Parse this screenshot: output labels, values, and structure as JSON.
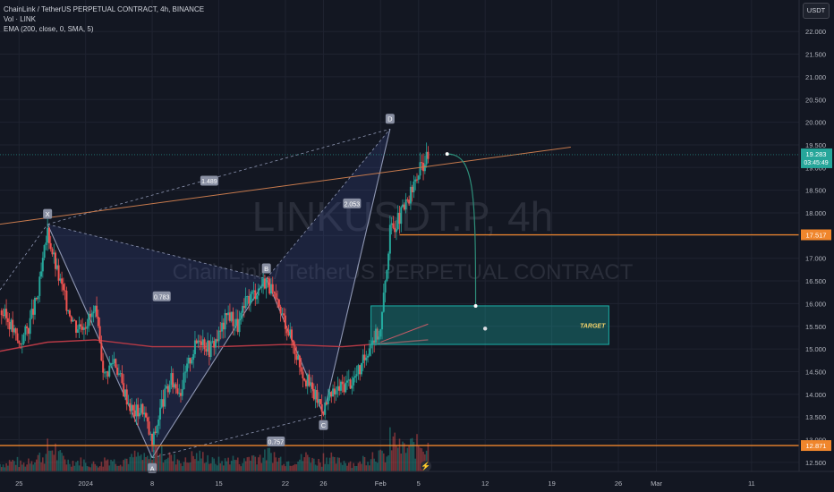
{
  "legend": {
    "symbol_line": "ChainLink / TetherUS PERPETUAL CONTRACT, 4h, BINANCE",
    "vol_line": "Vol · LINK",
    "ema_line": "EMA (200, close, 0, SMA, 5)"
  },
  "watermark": {
    "ticker": "LINKUSDT.P, 4h",
    "name": "ChainLink / TetherUS PERPETUAL CONTRACT"
  },
  "currency_badge": "USDT",
  "colors": {
    "background": "#131722",
    "up": "#26a69a",
    "down": "#ef5350",
    "ema": "#b83a46",
    "pattern": "#8f97b3",
    "trendline": "#c77a4d",
    "level": "#f0862c",
    "target": "#1ab0a7"
  },
  "chart_data": {
    "type": "candlestick",
    "title": "ChainLink / TetherUS PERPETUAL CONTRACT, 4h, BINANCE",
    "y_axis": {
      "ticks": [
        12.5,
        13.0,
        13.5,
        14.0,
        14.5,
        15.0,
        15.5,
        16.0,
        16.5,
        17.0,
        17.5,
        18.0,
        18.5,
        19.0,
        19.5,
        20.0,
        20.5,
        21.0,
        21.5,
        22.0
      ],
      "tick_labels": [
        "12.500",
        "13.000",
        "13.500",
        "14.000",
        "14.500",
        "15.000",
        "15.500",
        "16.000",
        "16.500",
        "17.000",
        "17.500",
        "18.000",
        "18.500",
        "19.000",
        "19.500",
        "20.000",
        "20.500",
        "21.000",
        "21.500",
        "22.000"
      ],
      "range": [
        12.3,
        22.3
      ]
    },
    "x_axis": {
      "range": [
        "2023-12-23",
        "2024-03-16"
      ],
      "ticks": [
        {
          "date": "2023-12-25",
          "label": "25"
        },
        {
          "date": "2024-01-01",
          "label": "2024"
        },
        {
          "date": "2024-01-08",
          "label": "8"
        },
        {
          "date": "2024-01-15",
          "label": "15"
        },
        {
          "date": "2024-01-22",
          "label": "22"
        },
        {
          "date": "2024-01-26",
          "label": "26"
        },
        {
          "date": "2024-02-01",
          "label": "Feb"
        },
        {
          "date": "2024-02-05",
          "label": "5"
        },
        {
          "date": "2024-02-12",
          "label": "12"
        },
        {
          "date": "2024-02-19",
          "label": "19"
        },
        {
          "date": "2024-02-26",
          "label": "26"
        },
        {
          "date": "2024-03-01",
          "label": "Mar"
        },
        {
          "date": "2024-03-11",
          "label": "11"
        }
      ]
    },
    "price_path": [
      {
        "date": "2023-12-23",
        "price": 15.85
      },
      {
        "date": "2023-12-24",
        "price": 15.6
      },
      {
        "date": "2023-12-25",
        "price": 15.1
      },
      {
        "date": "2023-12-26",
        "price": 15.5
      },
      {
        "date": "2023-12-27",
        "price": 16.2
      },
      {
        "date": "2023-12-28",
        "price": 17.6
      },
      {
        "date": "2023-12-29",
        "price": 16.7
      },
      {
        "date": "2023-12-30",
        "price": 16.0
      },
      {
        "date": "2023-12-31",
        "price": 15.5
      },
      {
        "date": "2024-01-01",
        "price": 15.6
      },
      {
        "date": "2024-01-02",
        "price": 15.8
      },
      {
        "date": "2024-01-03",
        "price": 14.4
      },
      {
        "date": "2024-01-04",
        "price": 14.8
      },
      {
        "date": "2024-01-05",
        "price": 14.1
      },
      {
        "date": "2024-01-06",
        "price": 13.6
      },
      {
        "date": "2024-01-07",
        "price": 13.7
      },
      {
        "date": "2024-01-08",
        "price": 12.9
      },
      {
        "date": "2024-01-09",
        "price": 13.8
      },
      {
        "date": "2024-01-10",
        "price": 14.3
      },
      {
        "date": "2024-01-11",
        "price": 14.1
      },
      {
        "date": "2024-01-12",
        "price": 14.8
      },
      {
        "date": "2024-01-13",
        "price": 15.3
      },
      {
        "date": "2024-01-14",
        "price": 15.0
      },
      {
        "date": "2024-01-15",
        "price": 15.3
      },
      {
        "date": "2024-01-16",
        "price": 15.8
      },
      {
        "date": "2024-01-17",
        "price": 15.5
      },
      {
        "date": "2024-01-18",
        "price": 16.1
      },
      {
        "date": "2024-01-19",
        "price": 16.3
      },
      {
        "date": "2024-01-20",
        "price": 16.55
      },
      {
        "date": "2024-01-21",
        "price": 16.0
      },
      {
        "date": "2024-01-22",
        "price": 15.6
      },
      {
        "date": "2024-01-23",
        "price": 15.0
      },
      {
        "date": "2024-01-24",
        "price": 14.4
      },
      {
        "date": "2024-01-25",
        "price": 14.0
      },
      {
        "date": "2024-01-26",
        "price": 13.7
      },
      {
        "date": "2024-01-27",
        "price": 14.0
      },
      {
        "date": "2024-01-28",
        "price": 14.2
      },
      {
        "date": "2024-01-29",
        "price": 14.3
      },
      {
        "date": "2024-01-30",
        "price": 14.6
      },
      {
        "date": "2024-01-31",
        "price": 15.2
      },
      {
        "date": "2024-02-01",
        "price": 15.4
      },
      {
        "date": "2024-02-02",
        "price": 17.6
      },
      {
        "date": "2024-02-03",
        "price": 17.9
      },
      {
        "date": "2024-02-04",
        "price": 18.3
      },
      {
        "date": "2024-02-05",
        "price": 18.9
      },
      {
        "date": "2024-02-06",
        "price": 19.28
      }
    ],
    "volume_profile": [
      3,
      4,
      3,
      5,
      6,
      9,
      6,
      4,
      4,
      3,
      3,
      5,
      4,
      5,
      6,
      5,
      9,
      7,
      5,
      4,
      6,
      6,
      4,
      4,
      5,
      4,
      6,
      6,
      7,
      5,
      4,
      5,
      6,
      4,
      6,
      4,
      4,
      3,
      5,
      7,
      6,
      12,
      9,
      10,
      11,
      14
    ],
    "ema_200": [
      {
        "date": "2023-12-23",
        "value": 14.95
      },
      {
        "date": "2023-12-28",
        "value": 15.15
      },
      {
        "date": "2024-01-02",
        "value": 15.2
      },
      {
        "date": "2024-01-08",
        "value": 15.05
      },
      {
        "date": "2024-01-15",
        "value": 15.05
      },
      {
        "date": "2024-01-22",
        "value": 15.1
      },
      {
        "date": "2024-01-28",
        "value": 15.05
      },
      {
        "date": "2024-02-03",
        "value": 15.15
      },
      {
        "date": "2024-02-06",
        "value": 15.2
      }
    ],
    "harmonic_pattern": {
      "points": [
        {
          "label": "X",
          "date": "2023-12-28",
          "price": 17.75
        },
        {
          "label": "A",
          "date": "2024-01-08",
          "price": 12.6
        },
        {
          "label": "B",
          "date": "2024-01-20",
          "price": 16.55
        },
        {
          "label": "C",
          "date": "2024-01-26",
          "price": 13.55
        },
        {
          "label": "D",
          "date": "2024-02-02",
          "price": 19.85
        }
      ],
      "ratios": [
        {
          "label": "0.783",
          "date": "2024-01-09",
          "price": 16.15
        },
        {
          "label": "0.757",
          "date": "2024-01-21",
          "price": 12.95
        },
        {
          "label": "1.489",
          "date": "2024-01-14",
          "price": 18.7
        },
        {
          "label": "2.053",
          "date": "2024-01-29",
          "price": 18.2
        }
      ]
    },
    "trendline": {
      "start": {
        "date": "2023-12-23",
        "price": 17.75
      },
      "end": {
        "date": "2024-02-21",
        "price": 19.45
      }
    },
    "horizontal_levels": [
      {
        "price": 17.517,
        "label": "17.517",
        "color": "#f0862c"
      },
      {
        "price": 12.871,
        "label": "12.871",
        "color": "#f0862c"
      }
    ],
    "last_price": {
      "price": 19.283,
      "label": "19.283",
      "countdown": "03:45:49"
    },
    "target_box": {
      "x0": "2024-01-31",
      "x1": "2024-02-25",
      "y_top": 15.95,
      "y_bottom": 15.1,
      "label": "TARGET"
    },
    "projection_curve": {
      "start": {
        "date": "2024-02-08",
        "price": 19.3
      },
      "end": {
        "date": "2024-02-11",
        "price": 15.95
      }
    },
    "guide_line": {
      "start": {
        "date": "2024-02-01",
        "price": 15.15
      },
      "end": {
        "date": "2024-02-06",
        "price": 15.55
      }
    },
    "target_marker": {
      "date": "2024-02-12",
      "price": 15.45
    }
  }
}
